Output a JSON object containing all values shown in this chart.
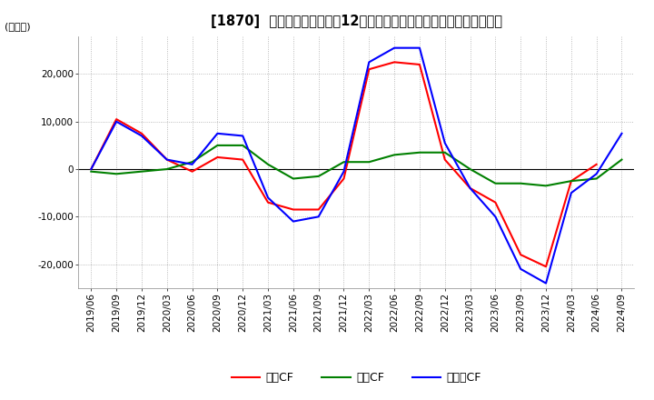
{
  "title": "[1870]  キャッシュフローの12か月移動合計の対前年同期増減額の推移",
  "ylabel": "(百万円)",
  "ylim": [
    -25000,
    28000
  ],
  "yticks": [
    -20000,
    -10000,
    0,
    10000,
    20000
  ],
  "x_labels": [
    "2019/06",
    "2019/09",
    "2019/12",
    "2020/03",
    "2020/06",
    "2020/09",
    "2020/12",
    "2021/03",
    "2021/06",
    "2021/09",
    "2021/12",
    "2022/03",
    "2022/06",
    "2022/09",
    "2022/12",
    "2023/03",
    "2023/06",
    "2023/09",
    "2023/12",
    "2024/03",
    "2024/06",
    "2024/09"
  ],
  "operating_cf": [
    0,
    10500,
    7500,
    2000,
    -500,
    2500,
    2000,
    -7000,
    -8500,
    -8500,
    -2000,
    21000,
    22500,
    22000,
    2000,
    -4000,
    -7000,
    -18000,
    -20500,
    -2500,
    1000,
    null
  ],
  "investing_cf": [
    -500,
    -1000,
    -500,
    0,
    1500,
    5000,
    5000,
    1000,
    -2000,
    -1500,
    1500,
    1500,
    3000,
    3500,
    3500,
    0,
    -3000,
    -3000,
    -3500,
    -2500,
    -2000,
    2000
  ],
  "free_cf": [
    0,
    10000,
    7000,
    2000,
    1000,
    7500,
    7000,
    -6000,
    -11000,
    -10000,
    -500,
    22500,
    25500,
    25500,
    5500,
    -4000,
    -10000,
    -21000,
    -24000,
    -5000,
    -1000,
    7500
  ],
  "color_operating": "#ff0000",
  "color_investing": "#008000",
  "color_free": "#0000ff",
  "legend_labels": [
    "営業CF",
    "投資CF",
    "フリーCF"
  ],
  "background_color": "#ffffff",
  "plot_bg_color": "#ffffff",
  "grid_color": "#aaaaaa",
  "title_fontsize": 10.5,
  "label_fontsize": 8,
  "tick_fontsize": 7.5
}
